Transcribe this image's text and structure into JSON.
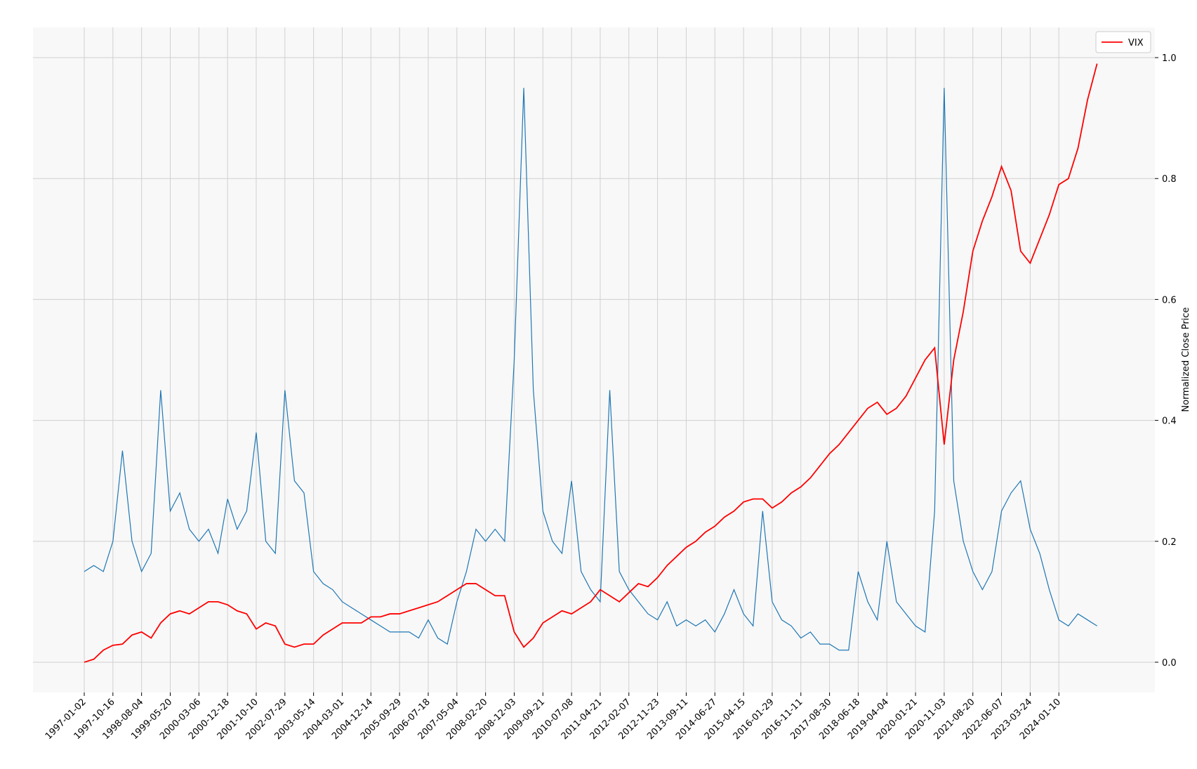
{
  "chart_data": {
    "type": "line",
    "y_label": "Normalized Close Price",
    "legend": "upper right",
    "grid": true,
    "categories": [
      "1997-01-02",
      null,
      null,
      "1997-10-16",
      null,
      null,
      "1998-08-04",
      null,
      null,
      "1999-05-20",
      null,
      null,
      "2000-03-06",
      null,
      null,
      "2000-12-18",
      null,
      null,
      "2001-10-10",
      null,
      null,
      "2002-07-29",
      null,
      null,
      "2003-05-14",
      null,
      null,
      "2004-03-01",
      null,
      null,
      "2004-12-14",
      null,
      null,
      "2005-09-29",
      null,
      null,
      "2006-07-18",
      null,
      null,
      "2007-05-04",
      null,
      null,
      "2008-02-20",
      null,
      null,
      "2008-12-03",
      null,
      null,
      "2009-09-21",
      null,
      null,
      "2010-07-08",
      null,
      null,
      "2011-04-21",
      null,
      null,
      "2012-02-07",
      null,
      null,
      "2012-11-23",
      null,
      null,
      "2013-09-11",
      null,
      null,
      "2014-06-27",
      null,
      null,
      "2015-04-15",
      null,
      null,
      "2016-01-29",
      null,
      null,
      "2016-11-11",
      null,
      null,
      "2017-08-30",
      null,
      null,
      "2018-06-18",
      null,
      null,
      "2019-04-04",
      null,
      null,
      "2020-01-21",
      null,
      null,
      "2020-11-03",
      null,
      null,
      "2021-08-20",
      null,
      null,
      "2022-06-07",
      null,
      null,
      "2023-03-24",
      null,
      null,
      "2024-01-10",
      null,
      null,
      null,
      null
    ],
    "series": [
      {
        "color": "#1f77b4",
        "values": [
          0.15,
          0.16,
          0.15,
          0.2,
          0.35,
          0.2,
          0.15,
          0.18,
          0.45,
          0.25,
          0.28,
          0.22,
          0.2,
          0.22,
          0.18,
          0.27,
          0.22,
          0.25,
          0.38,
          0.2,
          0.18,
          0.45,
          0.3,
          0.28,
          0.15,
          0.13,
          0.12,
          0.1,
          0.09,
          0.08,
          0.07,
          0.06,
          0.05,
          0.05,
          0.05,
          0.04,
          0.07,
          0.04,
          0.03,
          0.1,
          0.15,
          0.22,
          0.2,
          0.22,
          0.2,
          0.5,
          0.95,
          0.45,
          0.25,
          0.2,
          0.18,
          0.3,
          0.15,
          0.12,
          0.1,
          0.45,
          0.15,
          0.12,
          0.1,
          0.08,
          0.07,
          0.1,
          0.06,
          0.07,
          0.06,
          0.07,
          0.05,
          0.08,
          0.12,
          0.08,
          0.06,
          0.25,
          0.1,
          0.07,
          0.06,
          0.04,
          0.05,
          0.03,
          0.03,
          0.02,
          0.02,
          0.15,
          0.1,
          0.07,
          0.2,
          0.1,
          0.08,
          0.06,
          0.05,
          0.25,
          0.95,
          0.3,
          0.2,
          0.15,
          0.12,
          0.15,
          0.25,
          0.28,
          0.3,
          0.22,
          0.18,
          0.12,
          0.07,
          0.06,
          0.08,
          0.07,
          0.06
        ]
      },
      {
        "name": "VIX",
        "color": "#ff0000",
        "values": [
          0.0,
          0.005,
          0.02,
          0.028,
          0.03,
          0.045,
          0.05,
          0.04,
          0.065,
          0.08,
          0.085,
          0.08,
          0.09,
          0.1,
          0.1,
          0.095,
          0.085,
          0.08,
          0.055,
          0.065,
          0.06,
          0.03,
          0.025,
          0.03,
          0.03,
          0.045,
          0.055,
          0.065,
          0.065,
          0.065,
          0.075,
          0.075,
          0.08,
          0.08,
          0.085,
          0.09,
          0.095,
          0.1,
          0.11,
          0.12,
          0.13,
          0.13,
          0.12,
          0.11,
          0.11,
          0.05,
          0.025,
          0.04,
          0.065,
          0.075,
          0.085,
          0.08,
          0.09,
          0.1,
          0.12,
          0.11,
          0.1,
          0.115,
          0.13,
          0.125,
          0.14,
          0.16,
          0.175,
          0.19,
          0.2,
          0.215,
          0.225,
          0.24,
          0.25,
          0.265,
          0.27,
          0.27,
          0.255,
          0.265,
          0.28,
          0.29,
          0.305,
          0.325,
          0.345,
          0.36,
          0.38,
          0.4,
          0.42,
          0.43,
          0.41,
          0.42,
          0.44,
          0.47,
          0.5,
          0.52,
          0.36,
          0.5,
          0.58,
          0.68,
          0.73,
          0.77,
          0.82,
          0.78,
          0.68,
          0.66,
          0.7,
          0.74,
          0.79,
          0.8,
          0.85,
          0.93,
          0.99
        ]
      }
    ],
    "ylim": [
      -0.05,
      1.05
    ],
    "yticks": [
      {
        "value": 0,
        "label": "0.0"
      },
      0.2,
      0.4,
      0.6,
      0.8,
      {
        "value": 1,
        "label": "1.0"
      }
    ]
  }
}
